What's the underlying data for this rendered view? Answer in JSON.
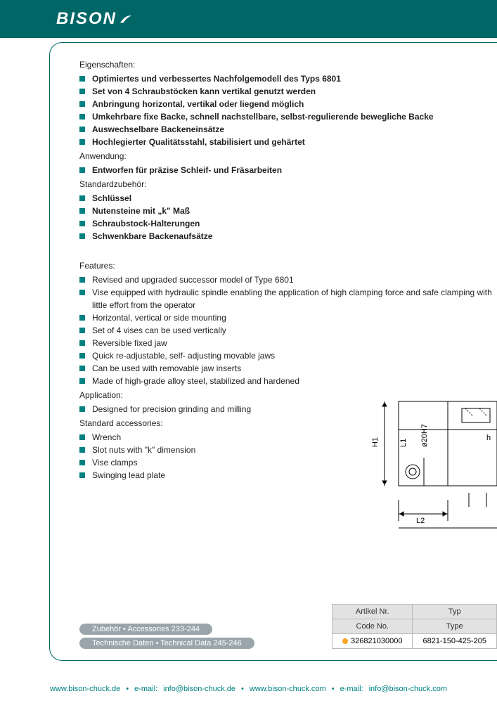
{
  "brand": "BISON",
  "de": {
    "eigenschaften_h": "Eigenschaften:",
    "eigenschaften": [
      "Optimiertes und verbessertes Nachfolgemodell des Typs 6801",
      "Set von 4 Schraubstöcken kann vertikal genutzt werden",
      "Anbringung horizontal, vertikal oder liegend möglich",
      "Umkehrbare fixe Backe, schnell nachstellbare, selbst-regulierende bewegliche Backe",
      "Auswechselbare Backeneinsätze",
      "Hochlegierter Qualitätsstahl, stabilisiert und gehärtet"
    ],
    "anwendung_h": "Anwendung:",
    "anwendung": [
      "Entworfen für präzise Schleif- und Fräsarbeiten"
    ],
    "zubehoer_h": "Standardzubehör:",
    "zubehoer": [
      "Schlüssel",
      "Nutensteine mit „k\" Maß",
      "Schraubstock-Halterungen",
      "Schwenkbare Backenaufsätze"
    ]
  },
  "en": {
    "features_h": "Features:",
    "features": [
      "Revised and upgraded successor model of Type 6801",
      "Vise equipped with hydraulic spindle enabling the application of high clamping force and safe clamping with little effort from the operator",
      "Horizontal, vertical or side mounting",
      "Set of 4 vises can be used vertically",
      "Reversible fixed jaw",
      "Quick re-adjustable, self- adjusting movable jaws",
      "Can be used with removable jaw inserts",
      "Made of high-grade alloy steel, stabilized and hardened"
    ],
    "application_h": "Application:",
    "application": [
      "Designed for precision grinding and milling"
    ],
    "accessories_h": "Standard accessories:",
    "accessories": [
      "Wrench",
      "Slot nuts with \"k\" dimension",
      "Vise clamps",
      "Swinging lead plate"
    ]
  },
  "diagram_labels": {
    "H1": "H1",
    "L1": "L1",
    "L2": "L2",
    "d": "ø20H7",
    "h": "h"
  },
  "pills": {
    "accessories": "Zubehör • Accessories 233-244",
    "techdata": "Technische Daten • Technical Data 245-246"
  },
  "table": {
    "head_de": [
      "Artikel Nr.",
      "Typ"
    ],
    "head_en": [
      "Code No.",
      "Type"
    ],
    "row": [
      "326821030000",
      "6821-150-425-205"
    ]
  },
  "footer": {
    "url_de": "www.bison-chuck.de",
    "email_de_label": "e-mail:",
    "email_de": "info@bison-chuck.de",
    "url_com": "www.bison-chuck.com",
    "email_com_label": "e-mail:",
    "email_com": "info@bison-chuck.com"
  },
  "colors": {
    "teal": "#006666",
    "bullet": "#008080",
    "pill": "#9aa5ab",
    "status": "#f5a623"
  }
}
